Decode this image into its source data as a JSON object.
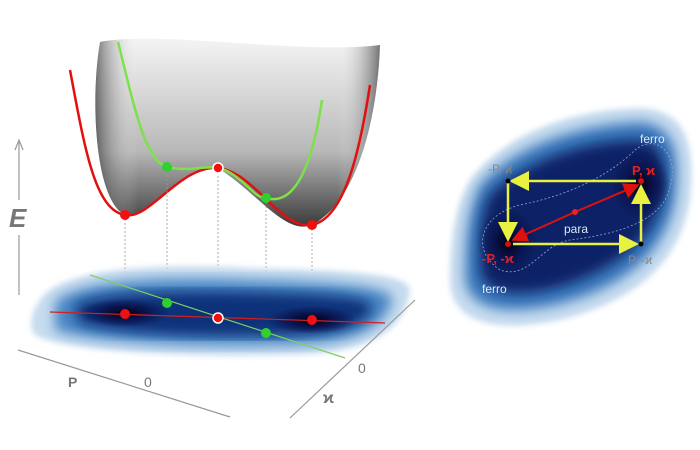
{
  "left_panel": {
    "energy_axis_label": "E",
    "p_axis_label": "P",
    "p_axis_zero": "0",
    "kappa_axis_label": "ϰ",
    "kappa_axis_zero": "0"
  },
  "right_panel": {
    "ferro_top": "ferro",
    "ferro_bottom": "ferro",
    "state_neg_p_pos_k": "-P, ϰ",
    "state_pos_p_pos_k": "P, ϰ",
    "state_neg_p_neg_k": "-P, -ϰ",
    "state_pos_p_neg_k": "P, -ϰ",
    "para": "para"
  },
  "colors": {
    "red_path": "#e01010",
    "green_path": "#7ee04a",
    "yellow_arrow": "#e8f040",
    "map_dark": "#050a30",
    "map_mid": "#1f5aa8",
    "axis_gray": "#888888"
  }
}
